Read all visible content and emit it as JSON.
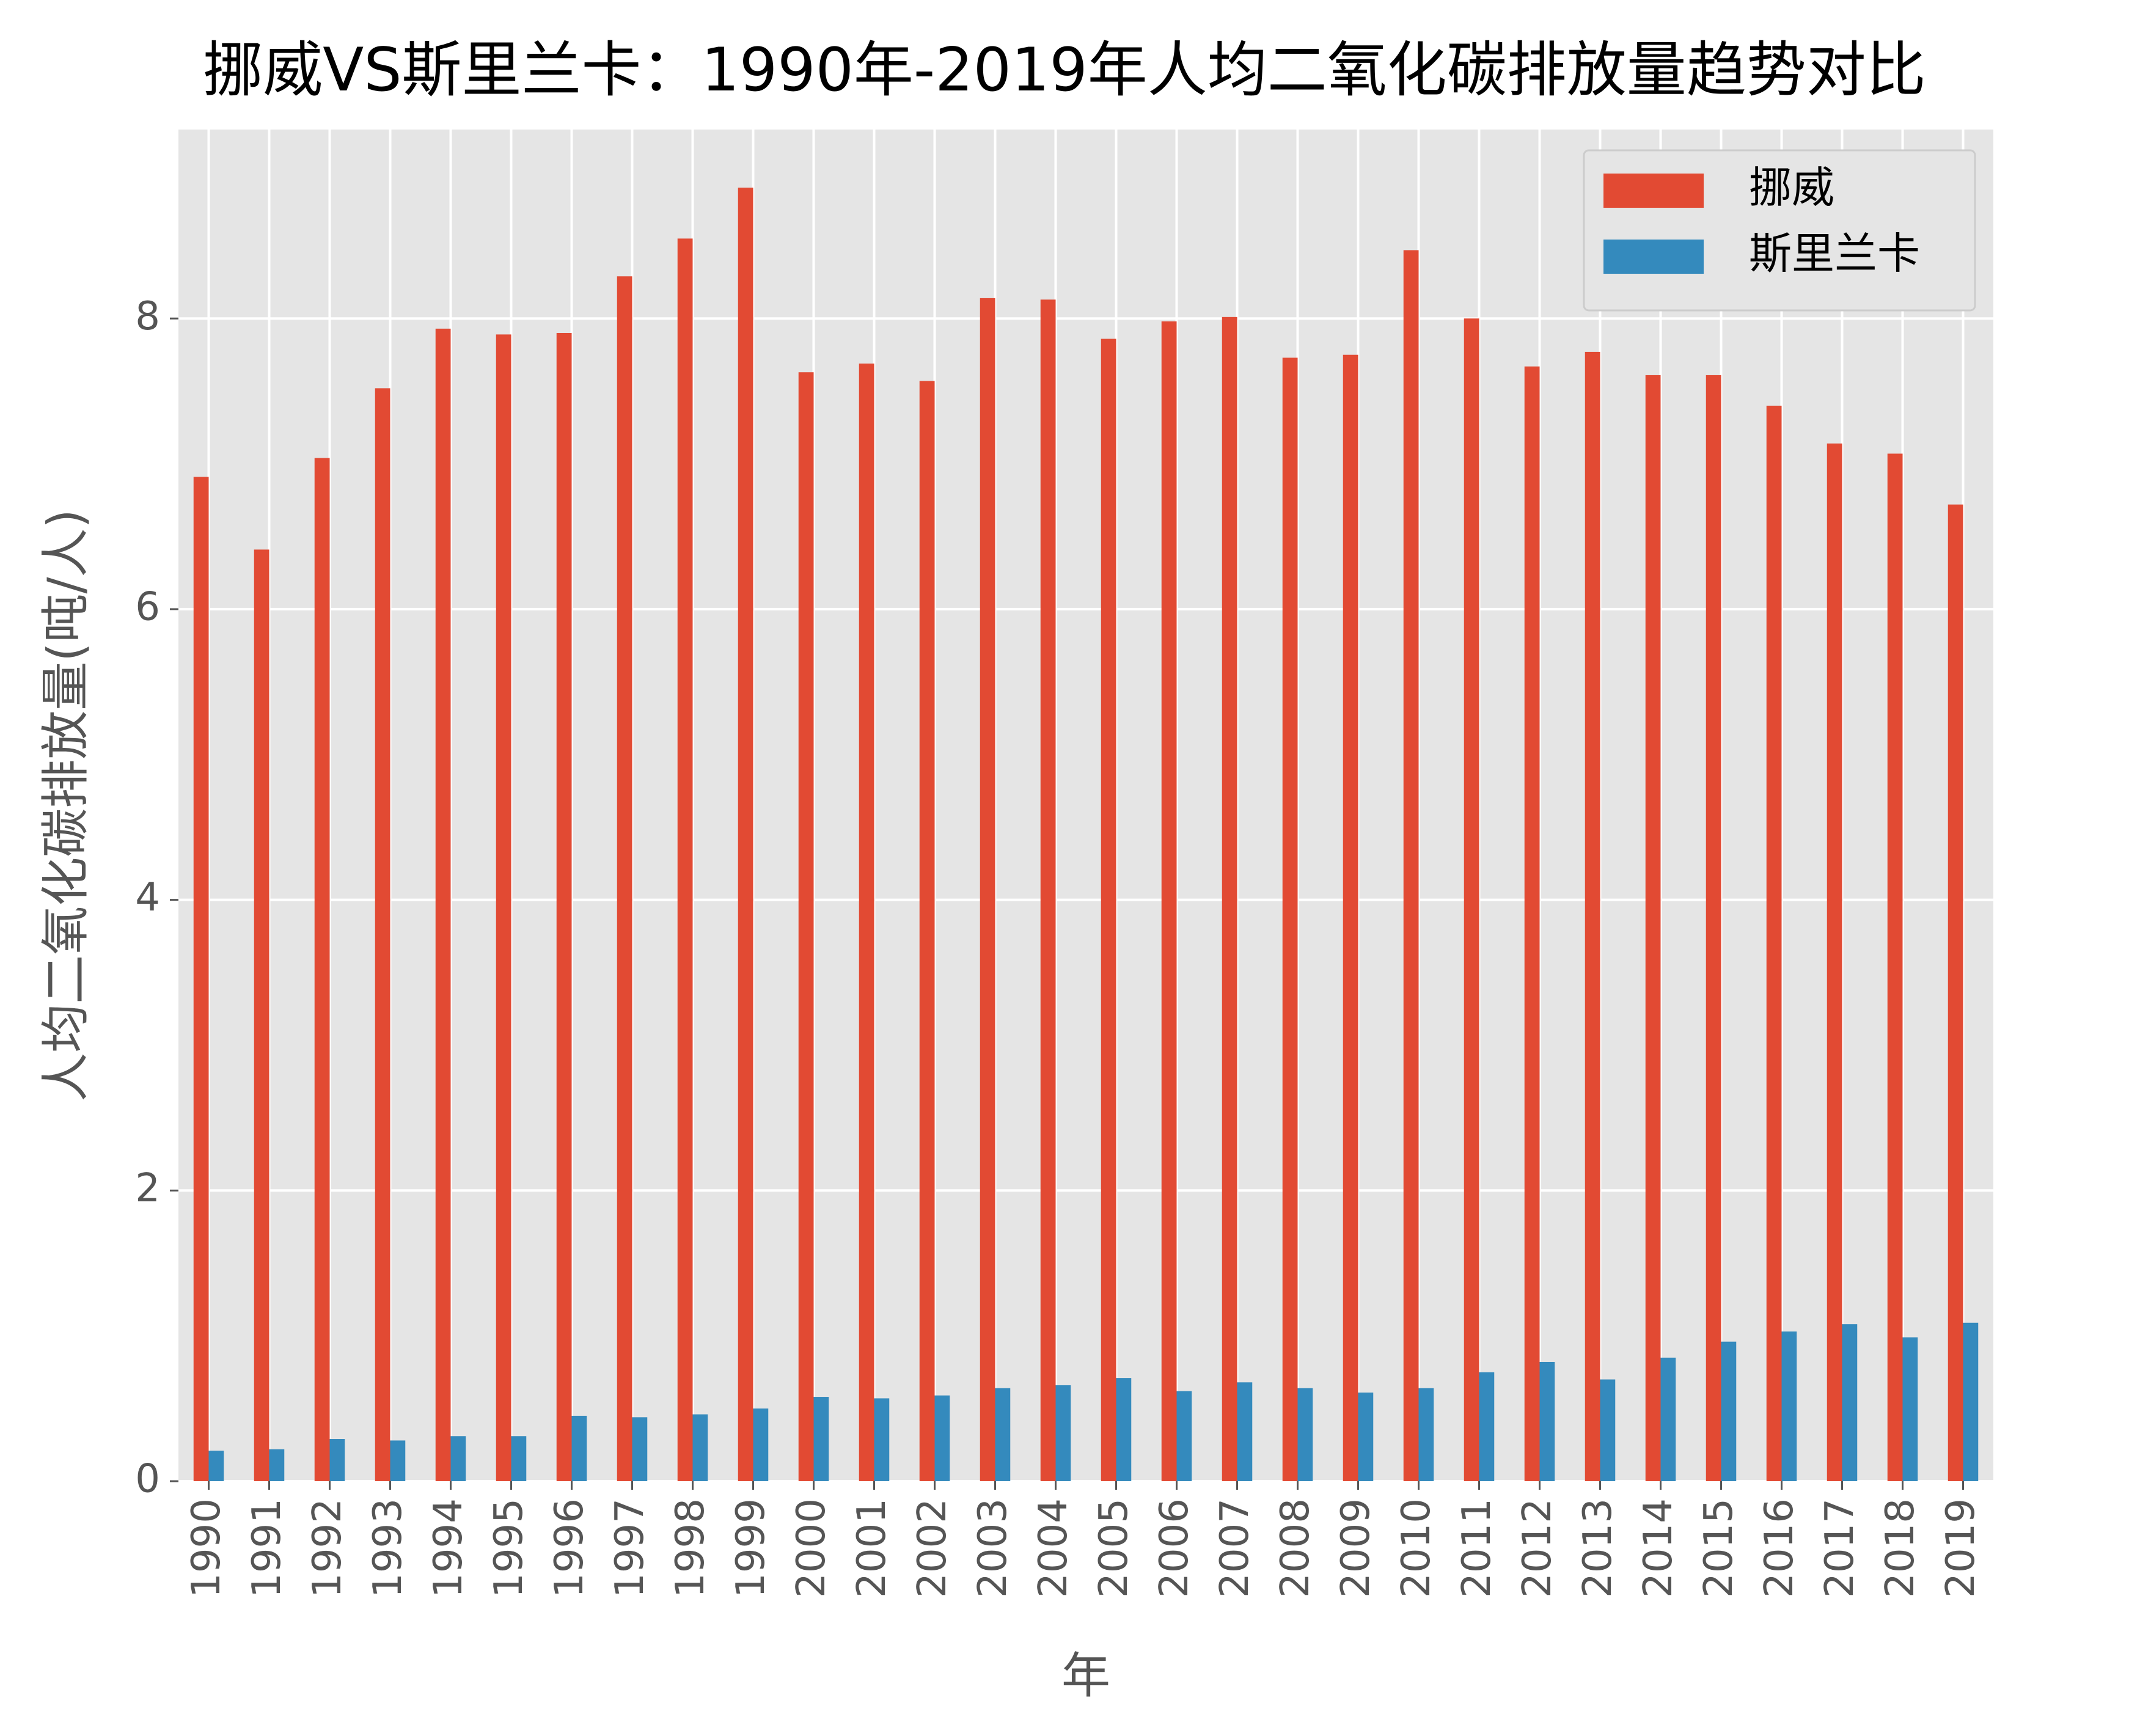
{
  "chart_data": {
    "type": "bar",
    "title": "挪威VS斯里兰卡：1990年-2019年人均二氧化碳排放量趋势对比",
    "xlabel": "年",
    "ylabel": "人均二氧化碳排放量(吨/人)",
    "ylim": [
      0,
      9.3
    ],
    "yticks": [
      "0",
      "2",
      "4",
      "6",
      "8"
    ],
    "grid": true,
    "legend_position": "top-right",
    "categories": [
      "1990",
      "1991",
      "1992",
      "1993",
      "1994",
      "1995",
      "1996",
      "1997",
      "1998",
      "1999",
      "2000",
      "2001",
      "2002",
      "2003",
      "2004",
      "2005",
      "2006",
      "2007",
      "2008",
      "2009",
      "2010",
      "2011",
      "2012",
      "2013",
      "2014",
      "2015",
      "2016",
      "2017",
      "2018",
      "2019"
    ],
    "series": [
      {
        "name": "挪威",
        "color": "#e24a33",
        "values": [
          6.91,
          6.41,
          7.04,
          7.52,
          7.93,
          7.89,
          7.9,
          8.29,
          8.55,
          8.9,
          7.63,
          7.69,
          7.57,
          8.14,
          8.13,
          7.86,
          7.98,
          8.01,
          7.73,
          7.75,
          8.47,
          8.0,
          7.67,
          7.77,
          7.61,
          7.61,
          7.4,
          7.14,
          7.07,
          6.72
        ]
      },
      {
        "name": "斯里兰卡",
        "color": "#348abd",
        "values": [
          0.21,
          0.22,
          0.29,
          0.28,
          0.31,
          0.31,
          0.45,
          0.44,
          0.46,
          0.5,
          0.58,
          0.57,
          0.59,
          0.64,
          0.66,
          0.71,
          0.62,
          0.68,
          0.64,
          0.61,
          0.64,
          0.75,
          0.82,
          0.7,
          0.85,
          0.96,
          1.03,
          1.08,
          0.99,
          1.09
        ]
      }
    ]
  }
}
